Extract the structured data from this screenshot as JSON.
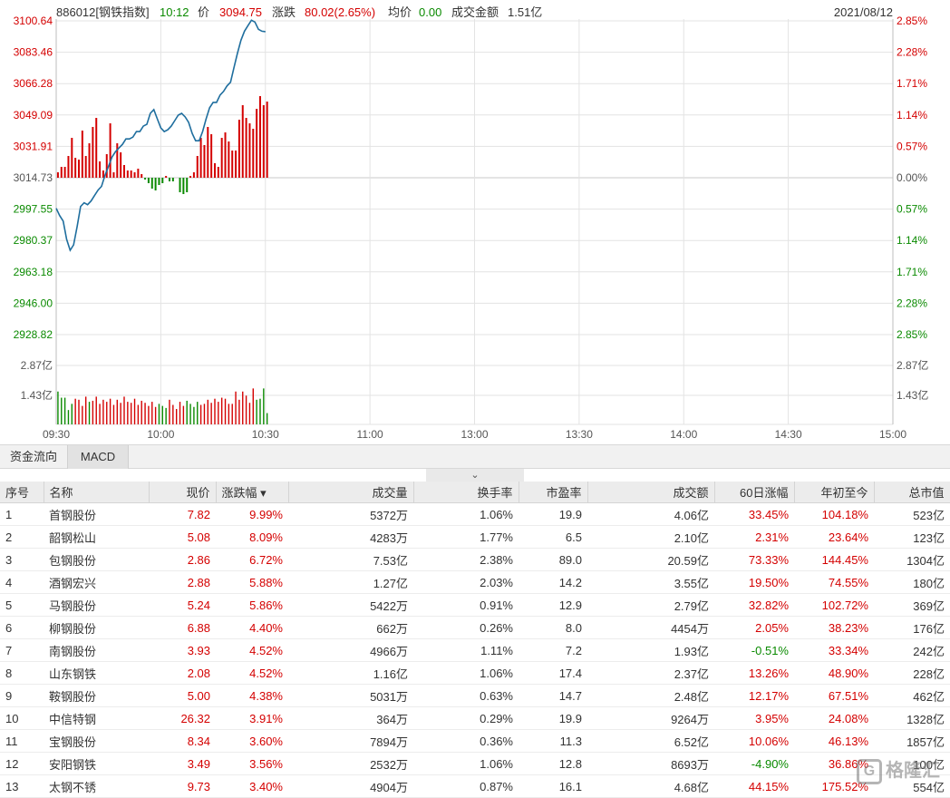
{
  "header": {
    "code_name": "886012[钢铁指数]",
    "time": "10:12",
    "price_label": "价",
    "price": "3094.75",
    "change_label": "涨跌",
    "change": "80.02(2.65%)",
    "avg_label": "均价",
    "avg": "0.00",
    "amount_label": "成交金额",
    "amount": "1.51亿",
    "date": "2021/08/12"
  },
  "price_axis": {
    "left": [
      "3100.64",
      "3083.46",
      "3066.28",
      "3049.09",
      "3031.91",
      "3014.73",
      "2997.55",
      "2980.37",
      "2963.18",
      "2946.00",
      "2928.82"
    ],
    "right": [
      "2.85%",
      "2.28%",
      "1.71%",
      "1.14%",
      "0.57%",
      "0.00%",
      "0.57%",
      "1.14%",
      "1.71%",
      "2.28%",
      "2.85%"
    ],
    "values": [
      3100.64,
      3083.46,
      3066.28,
      3049.09,
      3031.91,
      3014.73,
      2997.55,
      2980.37,
      2963.18,
      2946.0,
      2928.82
    ],
    "prev_close": 3014.73
  },
  "volume_axis": {
    "left": [
      "2.87亿",
      "1.43亿"
    ],
    "right": [
      "2.87亿",
      "1.43亿"
    ]
  },
  "time_axis": [
    "09:30",
    "10:00",
    "10:30",
    "11:00",
    "13:00",
    "13:30",
    "14:00",
    "14:30",
    "15:00"
  ],
  "colors": {
    "up": "#d40000",
    "down": "#0a8a00",
    "price_line": "#1f6e9e",
    "grid": "#e3e3e3"
  },
  "chart_data": {
    "type": "line",
    "x_unit": "minute index (0 = 09:30, 240 = 15:00)",
    "price": [
      2998,
      2994,
      2991,
      2981,
      2975,
      2978,
      2988,
      2999,
      3001,
      3000,
      3002,
      3005,
      3008,
      3010,
      3016,
      3021,
      3026,
      3029,
      3031,
      3033,
      3036,
      3036,
      3037,
      3040,
      3040,
      3043,
      3044,
      3050,
      3052,
      3047,
      3042,
      3040,
      3041,
      3043,
      3046,
      3049,
      3050,
      3048,
      3045,
      3039,
      3035,
      3035,
      3040,
      3047,
      3053,
      3056,
      3056,
      3060,
      3062,
      3065,
      3067,
      3075,
      3083,
      3090,
      3095,
      3098,
      3101,
      3100,
      3096,
      3095,
      3094.75
    ],
    "fund_flow": [
      3,
      6,
      6,
      12,
      22,
      11,
      10,
      26,
      12,
      19,
      28,
      33,
      9,
      4,
      13,
      30,
      3,
      19,
      14,
      7,
      4,
      4,
      3,
      5,
      2,
      -1,
      -3,
      -6,
      -7,
      -4,
      -3,
      1,
      -2,
      -2,
      0,
      -8,
      -9,
      -8,
      1,
      3,
      12,
      22,
      18,
      28,
      24,
      8,
      6,
      22,
      25,
      20,
      15,
      15,
      32,
      40,
      33,
      30,
      27,
      38,
      45,
      40,
      42
    ],
    "volume": [
      1.6,
      1.3,
      1.3,
      0.7,
      1.0,
      1.25,
      1.2,
      0.9,
      1.35,
      1.1,
      1.15,
      1.35,
      1.0,
      1.2,
      1.1,
      1.25,
      0.95,
      1.2,
      1.05,
      1.35,
      1.1,
      1.05,
      1.25,
      0.95,
      1.15,
      1.05,
      0.9,
      1.1,
      0.85,
      1.0,
      0.9,
      0.8,
      1.2,
      0.95,
      0.75,
      1.1,
      0.9,
      1.15,
      1.0,
      0.85,
      1.1,
      0.95,
      1.0,
      1.2,
      1.05,
      1.25,
      1.1,
      1.3,
      1.25,
      1.0,
      1.0,
      1.6,
      1.2,
      1.6,
      1.4,
      1.05,
      1.75,
      1.2,
      1.25,
      1.75,
      0.55
    ]
  },
  "tabs": [
    {
      "label": "资金流向"
    },
    {
      "label": "MACD"
    }
  ],
  "collapse_icon": "⌄",
  "table": {
    "headers": [
      "序号",
      "名称",
      "现价",
      "涨跌幅 ▾",
      "成交量",
      "换手率",
      "市盈率",
      "成交额",
      "60日涨幅",
      "年初至今",
      "总市值"
    ],
    "rows": [
      [
        "1",
        "首钢股份",
        "7.82",
        "9.99%",
        "5372万",
        "1.06%",
        "19.9",
        "4.06亿",
        "33.45%",
        "104.18%",
        "523亿"
      ],
      [
        "2",
        "韶钢松山",
        "5.08",
        "8.09%",
        "4283万",
        "1.77%",
        "6.5",
        "2.10亿",
        "2.31%",
        "23.64%",
        "123亿"
      ],
      [
        "3",
        "包钢股份",
        "2.86",
        "6.72%",
        "7.53亿",
        "2.38%",
        "89.0",
        "20.59亿",
        "73.33%",
        "144.45%",
        "1304亿"
      ],
      [
        "4",
        "酒钢宏兴",
        "2.88",
        "5.88%",
        "1.27亿",
        "2.03%",
        "14.2",
        "3.55亿",
        "19.50%",
        "74.55%",
        "180亿"
      ],
      [
        "5",
        "马钢股份",
        "5.24",
        "5.86%",
        "5422万",
        "0.91%",
        "12.9",
        "2.79亿",
        "32.82%",
        "102.72%",
        "369亿"
      ],
      [
        "6",
        "柳钢股份",
        "6.88",
        "4.40%",
        "662万",
        "0.26%",
        "8.0",
        "4454万",
        "2.05%",
        "38.23%",
        "176亿"
      ],
      [
        "7",
        "南钢股份",
        "3.93",
        "4.52%",
        "4966万",
        "1.11%",
        "7.2",
        "1.93亿",
        "-0.51%",
        "33.34%",
        "242亿"
      ],
      [
        "8",
        "山东钢铁",
        "2.08",
        "4.52%",
        "1.16亿",
        "1.06%",
        "17.4",
        "2.37亿",
        "13.26%",
        "48.90%",
        "228亿"
      ],
      [
        "9",
        "鞍钢股份",
        "5.00",
        "4.38%",
        "5031万",
        "0.63%",
        "14.7",
        "2.48亿",
        "12.17%",
        "67.51%",
        "462亿"
      ],
      [
        "10",
        "中信特钢",
        "26.32",
        "3.91%",
        "364万",
        "0.29%",
        "19.9",
        "9264万",
        "3.95%",
        "24.08%",
        "1328亿"
      ],
      [
        "11",
        "宝钢股份",
        "8.34",
        "3.60%",
        "7894万",
        "0.36%",
        "11.3",
        "6.52亿",
        "10.06%",
        "46.13%",
        "1857亿"
      ],
      [
        "12",
        "安阳钢铁",
        "3.49",
        "3.56%",
        "2532万",
        "1.06%",
        "12.8",
        "8693万",
        "-4.90%",
        "36.86%",
        "100亿"
      ],
      [
        "13",
        "太钢不锈",
        "9.73",
        "3.40%",
        "4904万",
        "0.87%",
        "16.1",
        "4.68亿",
        "44.15%",
        "175.52%",
        "554亿"
      ]
    ]
  },
  "watermark": {
    "icon": "G",
    "text": "格隆汇"
  }
}
